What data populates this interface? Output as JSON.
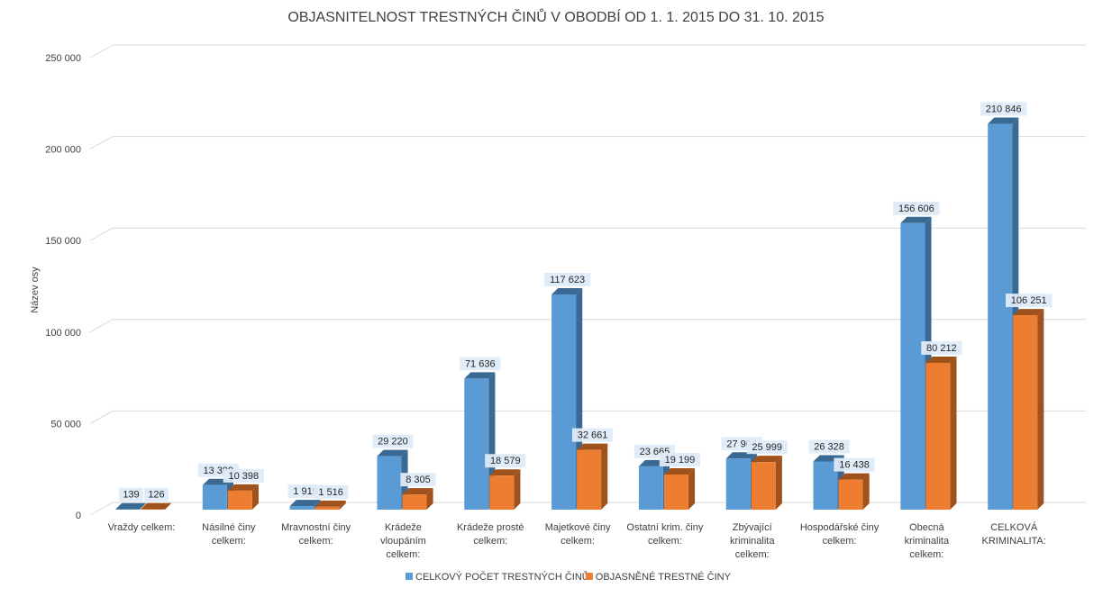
{
  "chart_data": {
    "type": "bar",
    "title": "OBJASNITELNOST TRESTNÝCH ČINŮ V OBODBÍ OD 1. 1. 2015 DO 31. 10. 2015",
    "ylabel": "Název osy",
    "xlabel": "",
    "ylim": [
      0,
      250000
    ],
    "yticks": [
      0,
      50000,
      100000,
      150000,
      200000,
      250000
    ],
    "ytick_labels": [
      "0",
      "50 000",
      "100 000",
      "150 000",
      "200 000",
      "250 000"
    ],
    "grid": true,
    "legend_position": "bottom",
    "categories": [
      [
        "Vraždy celkem:"
      ],
      [
        "Násilné činy",
        "celkem:"
      ],
      [
        "Mravnostní činy",
        "celkem:"
      ],
      [
        "Krádeže",
        "vloupáním",
        "celkem:"
      ],
      [
        "Krádeže prosté",
        "celkem:"
      ],
      [
        "Majetkové činy",
        "celkem:"
      ],
      [
        "Ostatní krim. činy",
        "celkem:"
      ],
      [
        "Zbývající",
        "kriminalita",
        "celkem:"
      ],
      [
        "Hospodářské činy",
        "celkem:"
      ],
      [
        "Obecná",
        "kriminalita",
        "celkem:"
      ],
      [
        "CELKOVÁ",
        "KRIMINALITA:"
      ]
    ],
    "series": [
      {
        "name": "CELKOVÝ POČET TRESTNÝCH ČINŮ",
        "color": "#5B9BD5",
        "side_color": "#3A6A94",
        "values": [
          139,
          13399,
          1919,
          29220,
          71636,
          117623,
          23665,
          27904,
          26328,
          156606,
          210846
        ],
        "labels": [
          "139",
          "13 399",
          "1 919",
          "29 220",
          "71 636",
          "117 623",
          "23 665",
          "27 904",
          "26 328",
          "156 606",
          "210 846"
        ]
      },
      {
        "name": "OBJASNĚNÉ TRESTNÉ ČINY",
        "color": "#ED7D31",
        "side_color": "#A0521C",
        "values": [
          126,
          10398,
          1516,
          8305,
          18579,
          32661,
          19199,
          25999,
          16438,
          80212,
          106251
        ],
        "labels": [
          "126",
          "10 398",
          "1 516",
          "8 305",
          "18 579",
          "32 661",
          "19 199",
          "25 999",
          "16 438",
          "80 212",
          "106 251"
        ]
      }
    ]
  }
}
